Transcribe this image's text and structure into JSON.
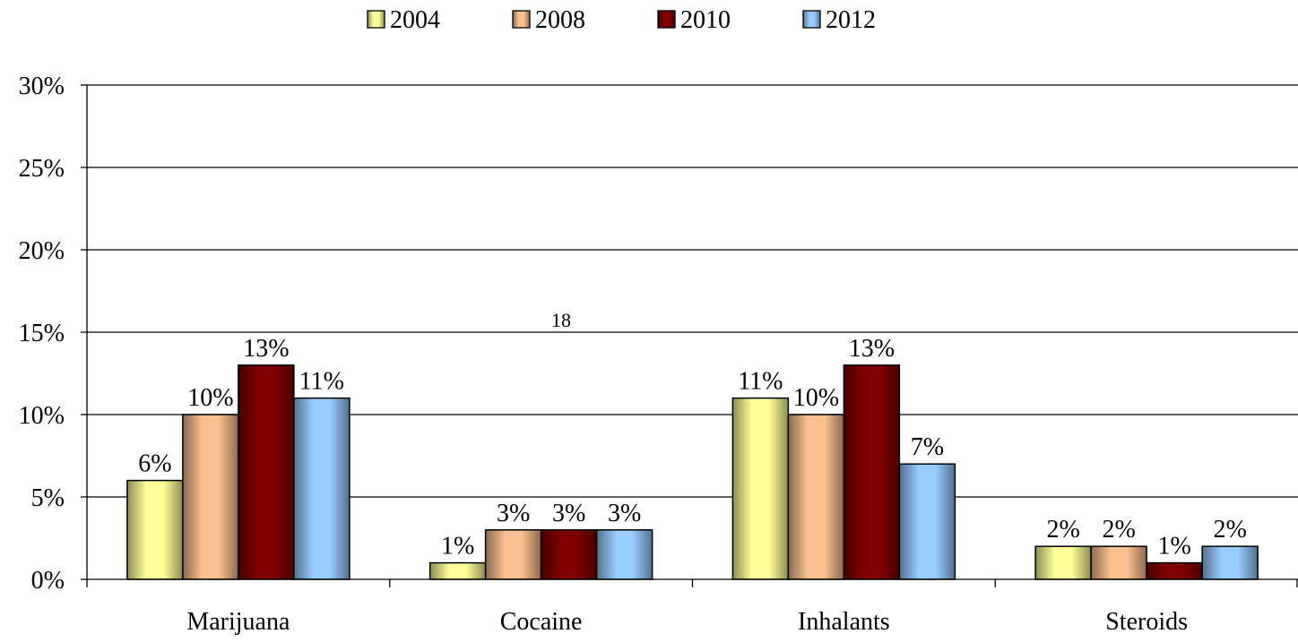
{
  "chart_data": {
    "type": "bar",
    "categories": [
      "Marijuana",
      "Cocaine",
      "Inhalants",
      "Steroids"
    ],
    "series": [
      {
        "name": "2004",
        "values": [
          6,
          1,
          11,
          2
        ],
        "labels": [
          "6%",
          "1%",
          "11%",
          "2%"
        ],
        "color": "#ffff99"
      },
      {
        "name": "2008",
        "values": [
          10,
          3,
          10,
          2
        ],
        "labels": [
          "10%",
          "3%",
          "10%",
          "2%"
        ],
        "color": "#fac090"
      },
      {
        "name": "2010",
        "values": [
          13,
          3,
          13,
          1
        ],
        "labels": [
          "13%",
          "3%",
          "13%",
          "1%"
        ],
        "color": "#800000"
      },
      {
        "name": "2012",
        "values": [
          11,
          3,
          7,
          2
        ],
        "labels": [
          "11%",
          "3%",
          "7%",
          "2%"
        ],
        "color": "#99ccff"
      }
    ],
    "y_ticks": [
      "0%",
      "5%",
      "10%",
      "15%",
      "20%",
      "25%",
      "30%"
    ],
    "ylim": [
      0,
      30
    ],
    "grid": true,
    "legend_position": "top",
    "annotation": "18"
  }
}
